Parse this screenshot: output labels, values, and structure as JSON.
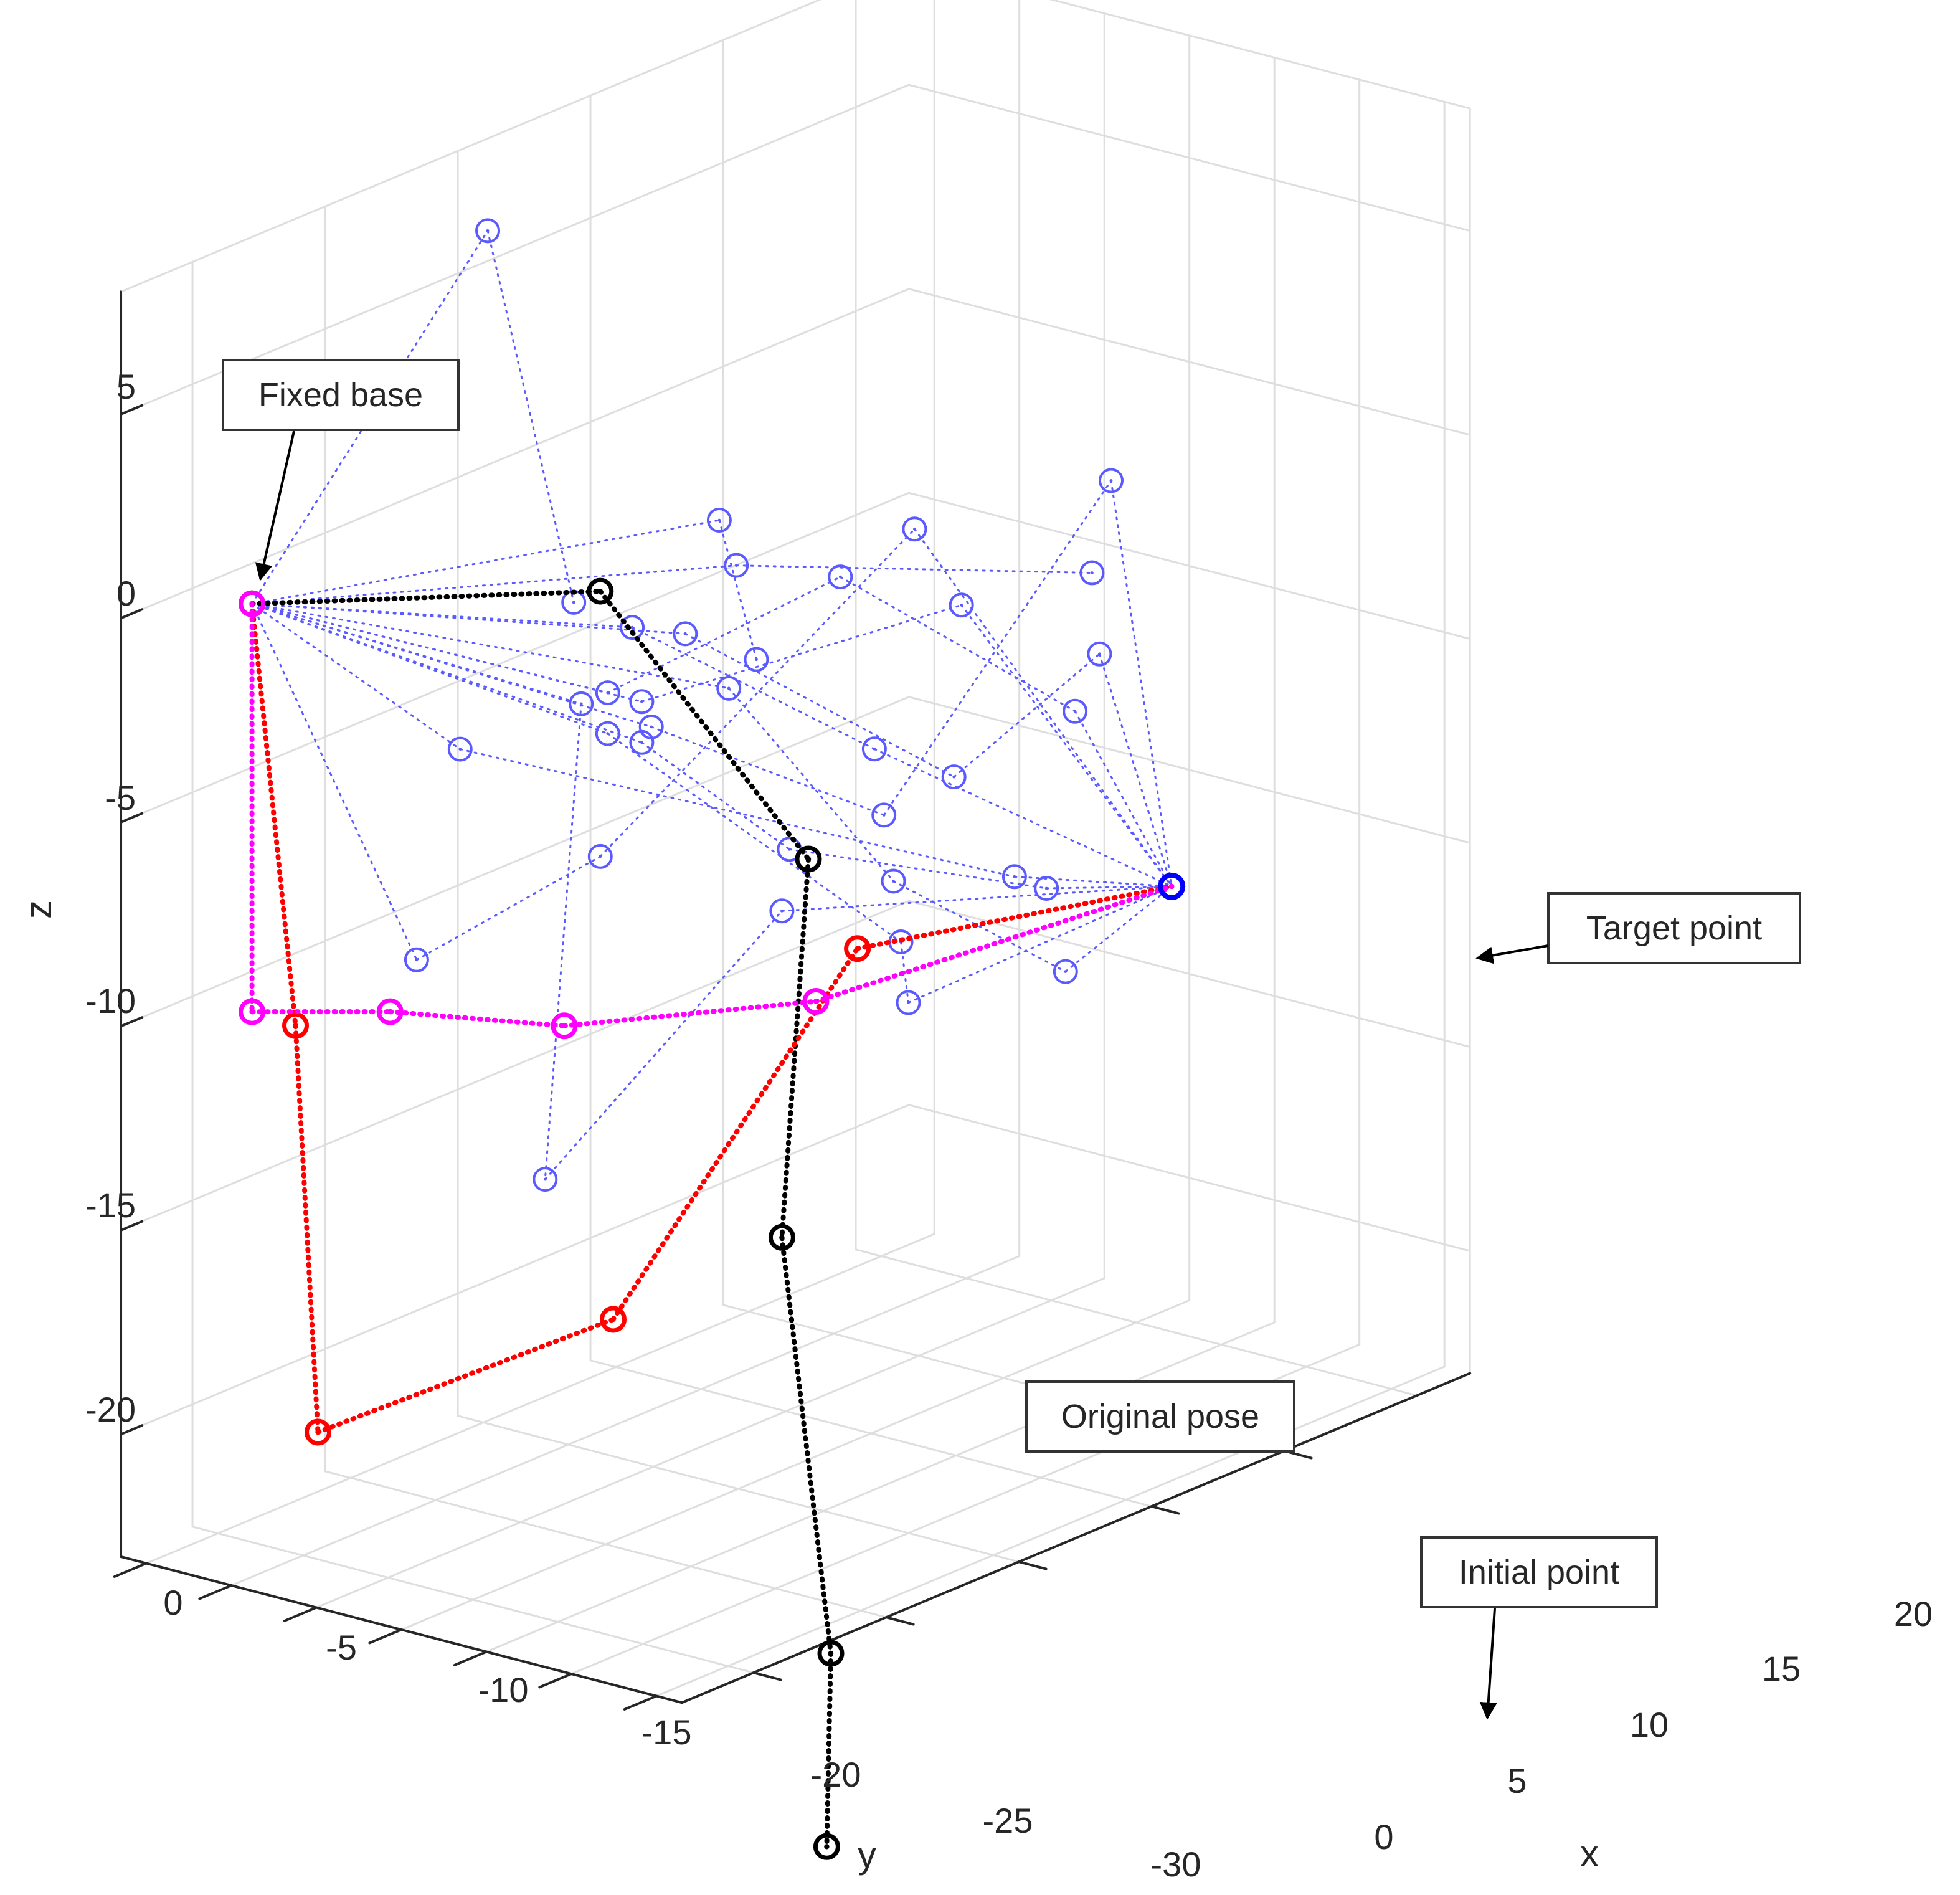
{
  "chart_data": {
    "type": "scatter",
    "projection": "3d",
    "grid": true,
    "axes": {
      "x": {
        "label": "x",
        "ticks": [
          "0",
          "5",
          "10",
          "15",
          "20"
        ]
      },
      "y": {
        "label": "y",
        "ticks": [
          "0",
          "-5",
          "-10",
          "-15",
          "-20",
          "-25",
          "-30"
        ]
      },
      "z": {
        "label": "z",
        "ticks": [
          "5",
          "0",
          "-5",
          "-10",
          "-15",
          "-20"
        ],
        "zlim": [
          -23,
          8
        ]
      }
    },
    "annotations": [
      {
        "name": "fixed-base",
        "text": "Fixed base"
      },
      {
        "name": "target-point",
        "text": "Target point"
      },
      {
        "name": "original-pose",
        "text": "Original pose"
      },
      {
        "name": "initial-point",
        "text": "Initial point"
      }
    ],
    "series": [
      {
        "style": "explored-configurations",
        "color": "#5a5aff",
        "paths": [
          [
            [
              0,
              -2,
              0
            ],
            [
              6,
              -6.5,
              8
            ],
            [
              7,
              -10,
              -1
            ]
          ],
          [
            [
              0,
              -2,
              0
            ],
            [
              8,
              -17,
              1.5
            ],
            [
              11,
              -14.5,
              -3
            ]
          ],
          [
            [
              0,
              -2,
              0
            ],
            [
              8,
              -18,
              0.5
            ],
            [
              15,
              -28,
              -0.5
            ]
          ],
          [
            [
              0,
              -2,
              0
            ],
            [
              6,
              -15,
              -0.8
            ],
            [
              10,
              -23,
              -4
            ],
            [
              18,
              -28,
              -9
            ]
          ],
          [
            [
              0,
              -2,
              0
            ],
            [
              7,
              -12,
              -3
            ],
            [
              10,
              -21,
              0
            ],
            [
              15,
              -27,
              -4
            ],
            [
              18,
              -28,
              -9
            ]
          ],
          [
            [
              0,
              -2,
              0
            ],
            [
              4,
              -8,
              -4
            ],
            [
              14,
              -25,
              -8
            ],
            [
              18,
              -28,
              -9
            ]
          ],
          [
            [
              0,
              -2,
              0
            ],
            [
              7,
              -14,
              -3
            ],
            [
              12,
              -25,
              -0.8
            ],
            [
              18,
              -28,
              -9
            ]
          ],
          [
            [
              0,
              -2,
              0
            ],
            [
              3,
              -7,
              -9
            ],
            [
              8,
              -10,
              -7.5
            ],
            [
              16,
              -16,
              -1
            ],
            [
              18,
              -28,
              -9
            ]
          ],
          [
            [
              0,
              -2,
              0
            ],
            [
              7,
              -14,
              -4
            ],
            [
              10,
              -18,
              -7
            ],
            [
              12,
              -30,
              -7.2
            ],
            [
              18,
              -28,
              -9
            ]
          ],
          [
            [
              0,
              -2,
              0
            ],
            [
              6,
              -12,
              -3
            ],
            [
              4,
              -13,
              -14
            ],
            [
              11,
              -16,
              -9
            ],
            [
              18,
              -28,
              -9
            ]
          ],
          [
            [
              0,
              -2,
              0
            ],
            [
              8,
              -13,
              -4
            ],
            [
              11,
              -22,
              -6
            ],
            [
              17,
              -26,
              1
            ],
            [
              18,
              -28,
              -9
            ]
          ],
          [
            [
              0,
              -2,
              0
            ],
            [
              9,
              -16,
              -3
            ],
            [
              12,
              -21,
              -8
            ],
            [
              14,
              -28,
              -10
            ],
            [
              18,
              -28,
              -9
            ]
          ],
          [
            [
              0,
              -2,
              0
            ],
            [
              7,
              -12,
              -4
            ],
            [
              11,
              -23,
              -9
            ],
            [
              10,
              -25,
              -10
            ],
            [
              18,
              -28,
              -9
            ]
          ],
          [
            [
              0,
              -2,
              0
            ],
            [
              8,
              -15,
              -1.5
            ],
            [
              13,
              -23,
              -5.5
            ],
            [
              14,
              -30,
              -2
            ],
            [
              18,
              -28,
              -9
            ]
          ]
        ]
      },
      {
        "style": "original-pose",
        "color": "#000000",
        "path": [
          [
            0,
            -2,
            0
          ],
          [
            8,
            -10,
            -1
          ],
          [
            12,
            -16,
            -8
          ],
          [
            11,
            -16,
            -17
          ],
          [
            9,
            -22,
            -26
          ],
          [
            5,
            -28,
            -29
          ]
        ]
      },
      {
        "style": "intermediate-pose",
        "color": "#ff0000",
        "path": [
          [
            0,
            -2,
            0
          ],
          [
            1,
            -3,
            -10.5
          ],
          [
            -2,
            -9,
            -19
          ],
          [
            4,
            -17,
            -17
          ],
          [
            10,
            -22,
            -9
          ],
          [
            18,
            -28,
            -9
          ]
        ]
      },
      {
        "style": "final-pose",
        "color": "#ff00ff",
        "path": [
          [
            0,
            -2,
            0
          ],
          [
            0,
            -2,
            -10
          ],
          [
            2,
            -7,
            -10
          ],
          [
            6,
            -11,
            -11
          ],
          [
            11,
            -18,
            -11
          ],
          [
            18,
            -28,
            -9
          ]
        ]
      }
    ]
  }
}
